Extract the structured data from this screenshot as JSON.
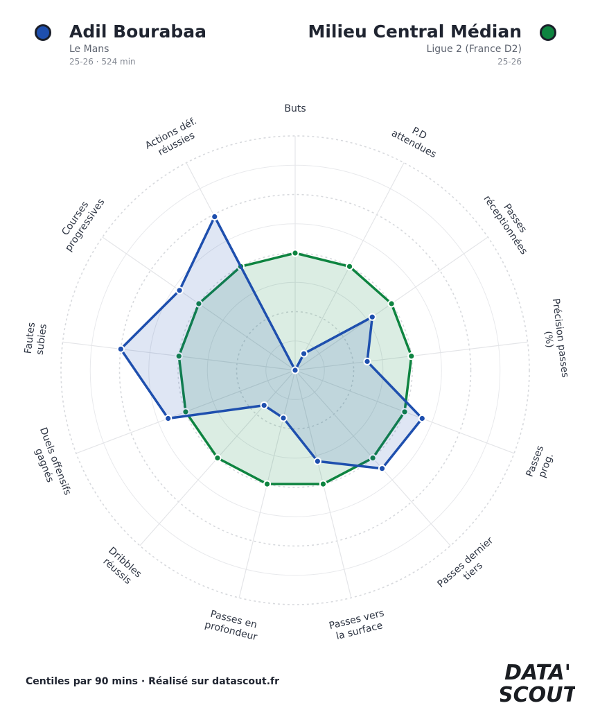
{
  "player": {
    "name": "Adil Bourabaa",
    "club": "Le Mans",
    "meta": "25-26 · 524 min",
    "color": "#1e4fae"
  },
  "comparison": {
    "name": "Milieu Central Médian",
    "league": "Ligue 2 (France D2)",
    "season": "25-26",
    "color": "#0e8440"
  },
  "footer": {
    "text": "Centiles par 90 mins · Réalisé sur datascout.fr"
  },
  "logo": {
    "line1": "DATA'",
    "line2": "SCOUT"
  },
  "chart_data": {
    "type": "radar",
    "range": [
      0,
      100
    ],
    "rings": [
      25,
      50,
      75,
      100
    ],
    "grid": true,
    "categories": [
      "Buts",
      "P.D attendues",
      "Passes réceptionnées",
      "Précision passes (%)",
      "Passes prog.",
      "Passes dernier tiers",
      "Passes vers la surface",
      "Passes en profondeur",
      "Dribbles réussis",
      "Duels offensifs gagnés",
      "Fautes subies",
      "Courses progressives",
      "Actions déf. réussies"
    ],
    "label_lines": [
      [
        "Buts"
      ],
      [
        "P.D",
        "attendues"
      ],
      [
        "Passes",
        "réceptionnées"
      ],
      [
        "Précision passes",
        "(%)"
      ],
      [
        "Passes",
        "prog."
      ],
      [
        "Passes dernier",
        "tiers"
      ],
      [
        "Passes vers",
        "la surface"
      ],
      [
        "Passes en",
        "profondeur"
      ],
      [
        "Dribbles",
        "réussis"
      ],
      [
        "Duels offensifs",
        "gagnés"
      ],
      [
        "Fautes",
        "subies"
      ],
      [
        "Courses",
        "progressives"
      ],
      [
        "Actions déf.",
        "réussies"
      ]
    ],
    "series": [
      {
        "name": "Milieu Central Médian",
        "color": "#0e8440",
        "fill": "#0e8440",
        "values": [
          50,
          50,
          50,
          50,
          50,
          50,
          50,
          50,
          50,
          50,
          50,
          50,
          50
        ]
      },
      {
        "name": "Adil Bourabaa",
        "color": "#1e4fae",
        "fill": "#1e4fae",
        "values": [
          0,
          8,
          40,
          31,
          58,
          56,
          40,
          21,
          20,
          58,
          75,
          60,
          74
        ]
      }
    ]
  }
}
